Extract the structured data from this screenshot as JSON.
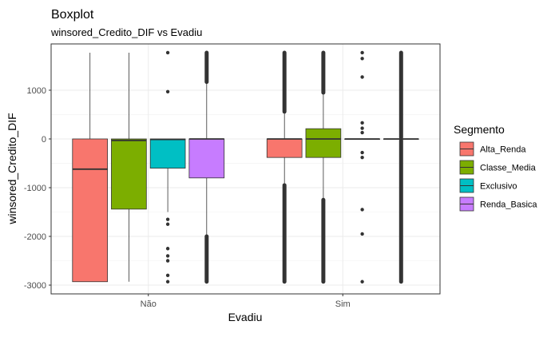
{
  "chart_data": {
    "type": "boxplot",
    "title": "Boxplot",
    "subtitle": "winsored_Credito_DIF vs Evadiu",
    "xlabel": "Evadiu",
    "ylabel": "winsored_Credito_DIF",
    "categories": [
      "Não",
      "Sim"
    ],
    "yticks": [
      -3000,
      -2000,
      -1000,
      0,
      1000
    ],
    "ylim": [
      -3180,
      1950
    ],
    "grid": true,
    "legend": {
      "title": "Segmento",
      "position": "right"
    },
    "series": [
      {
        "name": "Alta_Renda",
        "color": "#F8766D",
        "boxes": [
          {
            "category": "Não",
            "q1": -2930,
            "median": -620,
            "q3": 0,
            "whisker_low": -2930,
            "whisker_high": 1770,
            "outliers": [],
            "outlier_band": null
          },
          {
            "category": "Sim",
            "q1": -380,
            "median": 0,
            "q3": 0,
            "whisker_low": -950,
            "whisker_high": 560,
            "outliers": [],
            "outlier_band": [
              [
                -2930,
                -950
              ],
              [
                560,
                1770
              ]
            ]
          }
        ]
      },
      {
        "name": "Classe_Media",
        "color": "#7CAE00",
        "boxes": [
          {
            "category": "Não",
            "q1": -1440,
            "median": -30,
            "q3": 0,
            "whisker_low": -2930,
            "whisker_high": 1770,
            "outliers": [],
            "outlier_band": null
          },
          {
            "category": "Sim",
            "q1": -380,
            "median": 0,
            "q3": 210,
            "whisker_low": -1250,
            "whisker_high": 950,
            "outliers": [],
            "outlier_band": [
              [
                -2930,
                -1250
              ],
              [
                950,
                1770
              ]
            ]
          }
        ]
      },
      {
        "name": "Exclusivo",
        "color": "#00BFC4",
        "boxes": [
          {
            "category": "Não",
            "q1": -600,
            "median": -10,
            "q3": 0,
            "whisker_low": -1500,
            "whisker_high": 0,
            "outliers": [
              -1650,
              -1750,
              -2250,
              -2400,
              -2500,
              -2800,
              -2930,
              970,
              1770
            ],
            "outlier_band": null
          },
          {
            "category": "Sim",
            "q1": -10,
            "median": 0,
            "q3": 0,
            "whisker_low": -10,
            "whisker_high": 10,
            "outliers": [
              -2930,
              -1950,
              -1450,
              -380,
              -280,
              130,
              220,
              330,
              1270,
              1650,
              1770
            ],
            "outlier_band": null
          }
        ]
      },
      {
        "name": "Renda_Basica",
        "color": "#C77CFF",
        "boxes": [
          {
            "category": "Não",
            "q1": -800,
            "median": 0,
            "q3": 0,
            "whisker_low": -2000,
            "whisker_high": 1170,
            "outliers": [],
            "outlier_band": [
              [
                -2930,
                -2000
              ],
              [
                1170,
                1770
              ]
            ]
          },
          {
            "category": "Sim",
            "q1": 0,
            "median": 0,
            "q3": 0,
            "whisker_low": 0,
            "whisker_high": 0,
            "outliers": [],
            "outlier_band": [
              [
                -2930,
                -30
              ],
              [
                30,
                1770
              ]
            ]
          }
        ]
      }
    ]
  }
}
